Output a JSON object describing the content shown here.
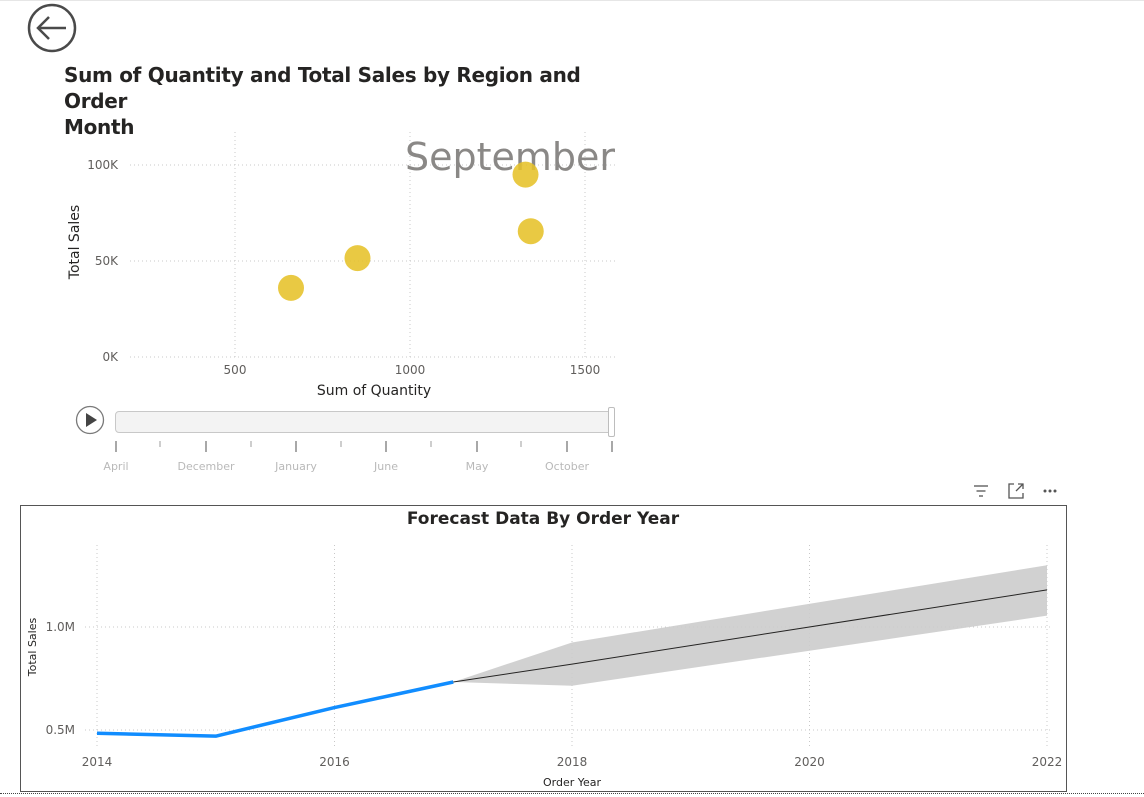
{
  "nav": {
    "back_icon": "arrow-left-circle-icon"
  },
  "scatter": {
    "title": "Sum of Quantity and Total Sales by Region and Order Month",
    "title_line1": "Sum of Quantity and Total Sales by Region and Order",
    "title_line2": "Month",
    "watermark": "September",
    "xlabel": "Sum of Quantity",
    "ylabel": "Total Sales",
    "x_ticks": [
      "500",
      "1000",
      "1500"
    ],
    "y_ticks": [
      "0K",
      "50K",
      "100K"
    ]
  },
  "timeline": {
    "play_icon": "play-icon",
    "labels": [
      "April",
      "December",
      "January",
      "June",
      "May",
      "October"
    ]
  },
  "toolbar": {
    "filter_icon": "filter-icon",
    "focus_icon": "focus-mode-icon",
    "more_icon": "more-options-icon"
  },
  "forecast": {
    "title": "Forecast Data By Order Year",
    "xlabel": "Order Year",
    "ylabel": "Total Sales",
    "x_ticks": [
      "2014",
      "2016",
      "2018",
      "2020",
      "2022"
    ],
    "y_ticks": [
      "0.5M",
      "1.0M"
    ]
  },
  "chart_data": [
    {
      "type": "scatter",
      "title": "Sum of Quantity and Total Sales by Region and Order Month",
      "xlabel": "Sum of Quantity",
      "ylabel": "Total Sales",
      "xlim": [
        200,
        1600
      ],
      "ylim": [
        0,
        115000
      ],
      "x_ticks": [
        500,
        1000,
        1500
      ],
      "y_ticks": [
        0,
        50000,
        100000
      ],
      "grid": true,
      "annotation": "September",
      "marker_color": "#E6C229",
      "points": [
        {
          "x": 660,
          "y": 36000
        },
        {
          "x": 850,
          "y": 51500
        },
        {
          "x": 1330,
          "y": 95000
        },
        {
          "x": 1345,
          "y": 65500
        }
      ]
    },
    {
      "type": "line",
      "title": "Forecast Data By Order Year",
      "xlabel": "Order Year",
      "ylabel": "Total Sales",
      "xlim": [
        2014,
        2022
      ],
      "ylim": [
        400000,
        1400000
      ],
      "x_ticks": [
        2014,
        2016,
        2018,
        2020,
        2022
      ],
      "y_ticks": [
        500000,
        1000000
      ],
      "grid": true,
      "series": [
        {
          "color": "#118DFF",
          "x": [
            2014,
            2015,
            2016,
            2017
          ],
          "y": [
            484000,
            470000,
            609000,
            733000
          ]
        },
        {
          "color": "#252423",
          "x": [
            2017,
            2018,
            2022
          ],
          "y": [
            733000,
            820000,
            1180000
          ]
        }
      ],
      "confidence_band": {
        "color": "#cccccc",
        "x": [
          2017,
          2018,
          2022
        ],
        "upper": [
          733000,
          925000,
          1300000
        ],
        "lower": [
          733000,
          715000,
          1055000
        ]
      }
    }
  ]
}
